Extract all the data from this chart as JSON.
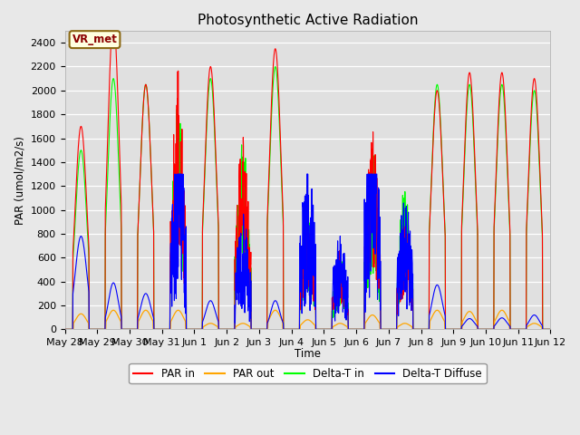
{
  "title": "Photosynthetic Active Radiation",
  "ylabel": "PAR (umol/m2/s)",
  "xlabel": "Time",
  "annotation": "VR_met",
  "ylim": [
    0,
    2500
  ],
  "fig_bg_color": "#e8e8e8",
  "plot_bg_color": "#e0e0e0",
  "grid_color": "white",
  "legend_labels": [
    "PAR in",
    "PAR out",
    "Delta-T in",
    "Delta-T Diffuse"
  ],
  "legend_colors": [
    "red",
    "orange",
    "lime",
    "blue"
  ],
  "line_colors": {
    "par_in": "red",
    "par_out": "orange",
    "delta_t_in": "lime",
    "delta_t_diffuse": "blue"
  },
  "x_tick_labels": [
    "May 28",
    "May 29",
    "May 30",
    "May 31",
    "Jun 1",
    "Jun 2",
    "Jun 3",
    "Jun 4",
    "Jun 5",
    "Jun 6",
    "Jun 7",
    "Jun 8",
    "Jun 9",
    "Jun 10",
    "Jun 11",
    "Jun 12"
  ],
  "n_days": 15,
  "pts_per_day": 144
}
